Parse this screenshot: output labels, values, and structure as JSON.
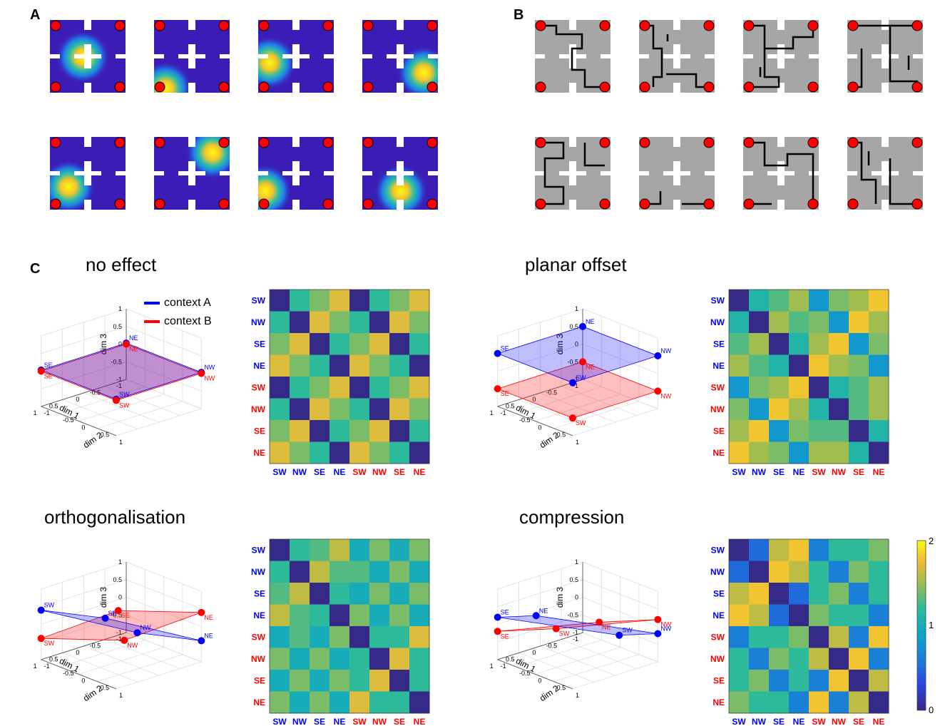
{
  "panels": {
    "a": "A",
    "b": "B",
    "c": "C"
  },
  "legend": {
    "context_a": "context A",
    "context_b": "context B"
  },
  "colors": {
    "context_a": "#0000ff",
    "context_b": "#ff0000",
    "maze_dark": "#3b1cb6",
    "maze_gray": "#a6a6a6",
    "goal": "#ff0000"
  },
  "axes": {
    "dim1": "dim 1",
    "dim2": "dim 2",
    "dim3": "dim 3"
  },
  "conditions": [
    {
      "title": "no effect"
    },
    {
      "title": "planar offset"
    },
    {
      "title": "orthogonalisation"
    },
    {
      "title": "compression"
    }
  ],
  "matrix_labels": [
    {
      "text": "SW",
      "context": "A"
    },
    {
      "text": "NW",
      "context": "A"
    },
    {
      "text": "SE",
      "context": "A"
    },
    {
      "text": "NE",
      "context": "A"
    },
    {
      "text": "SW",
      "context": "B"
    },
    {
      "text": "NW",
      "context": "B"
    },
    {
      "text": "SE",
      "context": "B"
    },
    {
      "text": "NE",
      "context": "B"
    }
  ],
  "colorbar": {
    "ticks": [
      "0",
      "1",
      "2"
    ],
    "min": 0,
    "max": 2,
    "colormap": "parula"
  },
  "chart_data": [
    {
      "type": "heatmap",
      "condition": "no effect",
      "values": [
        [
          0,
          1.2,
          1.4,
          1.7,
          0,
          1.2,
          1.4,
          1.7
        ],
        [
          1.2,
          0,
          1.7,
          1.4,
          1.2,
          0,
          1.7,
          1.4
        ],
        [
          1.4,
          1.7,
          0,
          1.2,
          1.4,
          1.7,
          0,
          1.2
        ],
        [
          1.7,
          1.4,
          1.2,
          0,
          1.7,
          1.4,
          1.2,
          0
        ],
        [
          0,
          1.2,
          1.4,
          1.7,
          0,
          1.2,
          1.4,
          1.7
        ],
        [
          1.2,
          0,
          1.7,
          1.4,
          1.2,
          0,
          1.7,
          1.4
        ],
        [
          1.4,
          1.7,
          0,
          1.2,
          1.4,
          1.7,
          0,
          1.2
        ],
        [
          1.7,
          1.4,
          1.2,
          0,
          1.7,
          1.4,
          1.2,
          0
        ]
      ]
    },
    {
      "type": "heatmap",
      "condition": "planar offset",
      "values": [
        [
          0,
          1.1,
          1.3,
          1.5,
          0.8,
          1.4,
          1.5,
          1.8
        ],
        [
          1.1,
          0,
          1.5,
          1.3,
          1.4,
          0.8,
          1.8,
          1.5
        ],
        [
          1.3,
          1.5,
          0,
          1.1,
          1.5,
          1.8,
          0.8,
          1.4
        ],
        [
          1.5,
          1.3,
          1.1,
          0,
          1.8,
          1.5,
          1.4,
          0.8
        ],
        [
          0.8,
          1.4,
          1.5,
          1.8,
          0,
          1.1,
          1.3,
          1.5
        ],
        [
          1.4,
          0.8,
          1.8,
          1.5,
          1.1,
          0,
          1.3,
          1.5
        ],
        [
          1.5,
          1.8,
          0.8,
          1.4,
          1.3,
          1.3,
          0,
          1.1
        ],
        [
          1.8,
          1.5,
          1.4,
          0.8,
          1.5,
          1.5,
          1.1,
          0
        ]
      ]
    },
    {
      "type": "heatmap",
      "condition": "orthogonalisation",
      "values": [
        [
          0,
          1.2,
          1.3,
          1.6,
          1.0,
          1.4,
          1.0,
          1.4
        ],
        [
          1.2,
          0,
          1.6,
          1.3,
          1.3,
          1.0,
          1.4,
          1.0
        ],
        [
          1.3,
          1.6,
          0,
          1.2,
          1.0,
          1.4,
          1.0,
          1.4
        ],
        [
          1.6,
          1.3,
          1.2,
          0,
          1.4,
          1.0,
          1.4,
          1.0
        ],
        [
          1.0,
          1.3,
          1.0,
          1.4,
          0,
          1.2,
          1.2,
          1.7
        ],
        [
          1.4,
          1.0,
          1.4,
          1.0,
          1.2,
          0,
          1.7,
          1.2
        ],
        [
          1.0,
          1.4,
          1.0,
          1.4,
          1.2,
          1.7,
          0,
          1.2
        ],
        [
          1.4,
          1.0,
          1.4,
          1.0,
          1.7,
          1.2,
          1.2,
          0
        ]
      ]
    },
    {
      "type": "heatmap",
      "condition": "compression",
      "values": [
        [
          0,
          0.5,
          1.6,
          1.8,
          0.6,
          1.2,
          1.2,
          1.4
        ],
        [
          0.5,
          0,
          1.8,
          1.6,
          1.2,
          0.6,
          1.4,
          1.2
        ],
        [
          1.6,
          1.8,
          0,
          0.5,
          1.2,
          1.4,
          0.6,
          1.2
        ],
        [
          1.8,
          1.6,
          0.5,
          0,
          1.4,
          1.2,
          1.2,
          0.6
        ],
        [
          0.6,
          1.2,
          1.2,
          1.4,
          0,
          1.6,
          0.6,
          1.8
        ],
        [
          1.2,
          0.6,
          1.4,
          1.2,
          1.6,
          0,
          1.8,
          0.6
        ],
        [
          1.2,
          1.4,
          0.6,
          1.2,
          0.6,
          1.8,
          0,
          1.6
        ],
        [
          1.4,
          1.2,
          1.2,
          0.6,
          1.8,
          0.6,
          1.6,
          0
        ]
      ]
    }
  ],
  "plots3d": [
    {
      "condition": "no effect",
      "points": [
        {
          "label": "SE",
          "ctx": "A",
          "x": 1,
          "y": -1,
          "z": 0.03
        },
        {
          "label": "SW",
          "ctx": "A",
          "x": 1,
          "y": 1,
          "z": 0.03
        },
        {
          "label": "NW",
          "ctx": "A",
          "x": -1,
          "y": 1,
          "z": 0.03
        },
        {
          "label": "NE",
          "ctx": "A",
          "x": -1,
          "y": -1,
          "z": 0.03
        },
        {
          "label": "SE",
          "ctx": "B",
          "x": 1,
          "y": -1,
          "z": 0
        },
        {
          "label": "SW",
          "ctx": "B",
          "x": 1,
          "y": 1,
          "z": 0
        },
        {
          "label": "NW",
          "ctx": "B",
          "x": -1,
          "y": 1,
          "z": 0
        },
        {
          "label": "NE",
          "ctx": "B",
          "x": -1,
          "y": -1,
          "z": 0
        }
      ]
    },
    {
      "condition": "planar offset",
      "points": [
        {
          "label": "SE",
          "ctx": "A",
          "x": 1,
          "y": -1,
          "z": 0.5
        },
        {
          "label": "SW",
          "ctx": "A",
          "x": 1,
          "y": 1,
          "z": 0.5
        },
        {
          "label": "NW",
          "ctx": "A",
          "x": -1,
          "y": 1,
          "z": 0.5
        },
        {
          "label": "NE",
          "ctx": "A",
          "x": -1,
          "y": -1,
          "z": 0.5
        },
        {
          "label": "SE",
          "ctx": "B",
          "x": 1,
          "y": -1,
          "z": -0.5
        },
        {
          "label": "SW",
          "ctx": "B",
          "x": 1,
          "y": 1,
          "z": -0.5
        },
        {
          "label": "NW",
          "ctx": "B",
          "x": -1,
          "y": 1,
          "z": -0.5
        },
        {
          "label": "NE",
          "ctx": "B",
          "x": -1,
          "y": -1,
          "z": -0.5
        }
      ]
    },
    {
      "condition": "orthogonalisation",
      "points": [
        {
          "label": "SE",
          "ctx": "A",
          "x": 0.2,
          "y": -0.2,
          "z": 0.2
        },
        {
          "label": "SW",
          "ctx": "A",
          "x": 1,
          "y": -1,
          "z": 0.4
        },
        {
          "label": "NW",
          "ctx": "A",
          "x": -0.2,
          "y": 0.2,
          "z": -0.2
        },
        {
          "label": "NE",
          "ctx": "A",
          "x": -1,
          "y": 1,
          "z": -0.4
        },
        {
          "label": "SE",
          "ctx": "B",
          "x": 0.6,
          "y": 0.6,
          "z": 0.9
        },
        {
          "label": "SW",
          "ctx": "B",
          "x": 1,
          "y": -1,
          "z": -0.4
        },
        {
          "label": "NW",
          "ctx": "B",
          "x": -0.6,
          "y": -0.6,
          "z": -0.9
        },
        {
          "label": "NE",
          "ctx": "B",
          "x": -1,
          "y": 1,
          "z": 0.4
        }
      ]
    },
    {
      "condition": "compression",
      "points": [
        {
          "label": "NE",
          "ctx": "A",
          "x": 0.8,
          "y": -0.2,
          "z": 0.5
        },
        {
          "label": "SE",
          "ctx": "A",
          "x": 1,
          "y": -1,
          "z": 0.2
        },
        {
          "label": "SW",
          "ctx": "A",
          "x": -0.8,
          "y": 0.2,
          "z": -0.5
        },
        {
          "label": "NW",
          "ctx": "A",
          "x": -1,
          "y": 1,
          "z": -0.2
        },
        {
          "label": "NE",
          "ctx": "B",
          "x": 0.2,
          "y": 0.8,
          "z": 0.5
        },
        {
          "label": "NW",
          "ctx": "B",
          "x": -1,
          "y": 1,
          "z": 0.2
        },
        {
          "label": "SW",
          "ctx": "B",
          "x": -0.2,
          "y": -0.8,
          "z": -0.5
        },
        {
          "label": "SE",
          "ctx": "B",
          "x": 1,
          "y": -1,
          "z": -0.2
        }
      ]
    }
  ],
  "axis_ticks": {
    "dim3": [
      "1",
      "0.5",
      "0",
      "-0.5",
      "-1"
    ],
    "dim1": [
      "-1",
      "-0.5",
      "0",
      "0.5",
      "1"
    ],
    "dim2": [
      "-1",
      "-0.5",
      "0",
      "0.5",
      "1"
    ]
  }
}
